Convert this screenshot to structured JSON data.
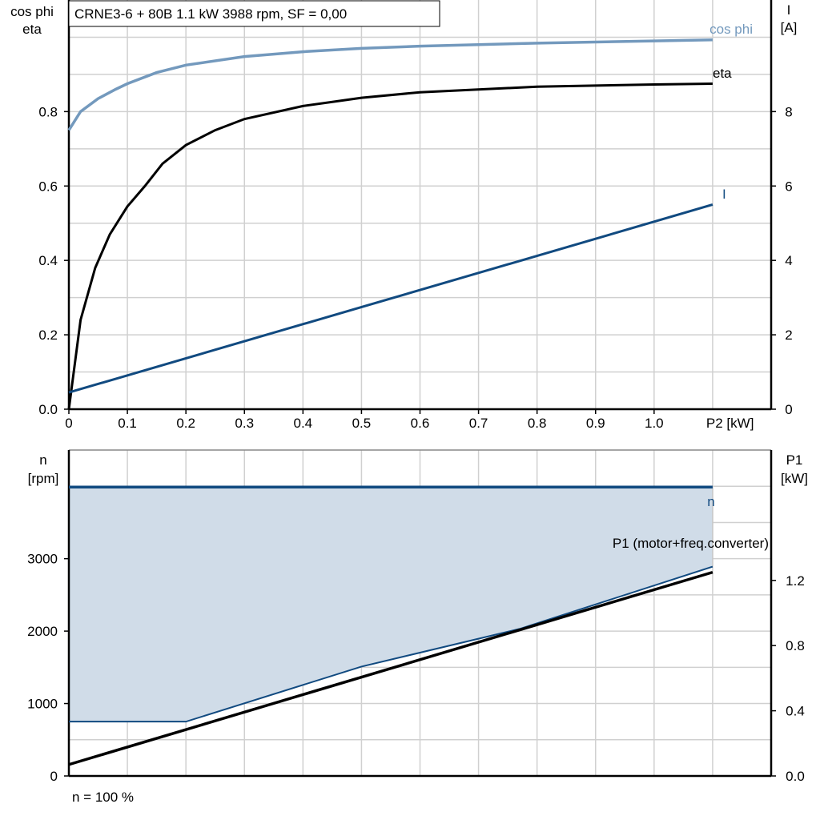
{
  "chart_data": [
    {
      "type": "line",
      "title": "CRNE3-6 + 80B   1.1 kW   3988 rpm, SF = 0,00",
      "xlabel": "P2 [kW]",
      "ylabel_left": [
        "cos phi",
        "eta"
      ],
      "ylabel_right": [
        "I",
        "[A]"
      ],
      "xlim": [
        0,
        1.2
      ],
      "ylim_left": [
        0,
        1.1
      ],
      "ylim_right": [
        0,
        11
      ],
      "x_ticks": [
        "0",
        "0.1",
        "0.2",
        "0.3",
        "0.4",
        "0.5",
        "0.6",
        "0.7",
        "0.8",
        "0.9",
        "1.0"
      ],
      "y_ticks_left": [
        "0.0",
        "0.2",
        "0.4",
        "0.6",
        "0.8"
      ],
      "y_ticks_right": [
        "0",
        "2",
        "4",
        "6",
        "8"
      ],
      "grid": true,
      "series": [
        {
          "name": "cos phi",
          "axis": "left",
          "color": "#7399bd",
          "x": [
            0,
            0.02,
            0.05,
            0.08,
            0.1,
            0.15,
            0.2,
            0.3,
            0.4,
            0.5,
            0.6,
            0.8,
            1.0,
            1.1
          ],
          "y": [
            0.75,
            0.8,
            0.835,
            0.86,
            0.875,
            0.905,
            0.925,
            0.948,
            0.961,
            0.97,
            0.976,
            0.984,
            0.99,
            0.993
          ]
        },
        {
          "name": "eta",
          "axis": "left",
          "color": "#000000",
          "x": [
            0,
            0.02,
            0.045,
            0.07,
            0.1,
            0.13,
            0.16,
            0.2,
            0.25,
            0.3,
            0.4,
            0.5,
            0.6,
            0.8,
            1.0,
            1.1
          ],
          "y": [
            0,
            0.24,
            0.38,
            0.47,
            0.545,
            0.6,
            0.66,
            0.71,
            0.75,
            0.78,
            0.815,
            0.837,
            0.852,
            0.867,
            0.873,
            0.875
          ]
        },
        {
          "name": "I",
          "axis": "right",
          "color": "#114a80",
          "x": [
            0,
            1.1
          ],
          "y": [
            0.45,
            5.5
          ]
        }
      ]
    },
    {
      "type": "area",
      "xlim": [
        0,
        1.2
      ],
      "ylabel_left": [
        "n",
        "[rpm]"
      ],
      "ylabel_right": [
        "P1",
        "[kW]"
      ],
      "ylim_left": [
        0,
        4500
      ],
      "ylim_right": [
        0,
        2.0
      ],
      "y_ticks_left": [
        "0",
        "1000",
        "2000",
        "3000"
      ],
      "y_ticks_right": [
        "0.0",
        "0.4",
        "0.8",
        "1.2"
      ],
      "grid": true,
      "annotation": "n = 100 %",
      "fill_color": "#d0dce8",
      "series": [
        {
          "name": "n",
          "axis": "left",
          "color": "#114a80",
          "x": [
            0,
            1.1
          ],
          "y": [
            3988,
            3988
          ]
        },
        {
          "axis": "left",
          "color": "#114a80",
          "x": [
            0,
            0.2,
            0.5,
            0.77,
            1.1
          ],
          "y": [
            750,
            750,
            1510,
            2030,
            2890
          ]
        },
        {
          "name": "P1 (motor+freq.converter)",
          "axis": "right",
          "color": "#000000",
          "x": [
            0,
            1.1
          ],
          "y": [
            0.07,
            1.25
          ]
        }
      ]
    }
  ]
}
